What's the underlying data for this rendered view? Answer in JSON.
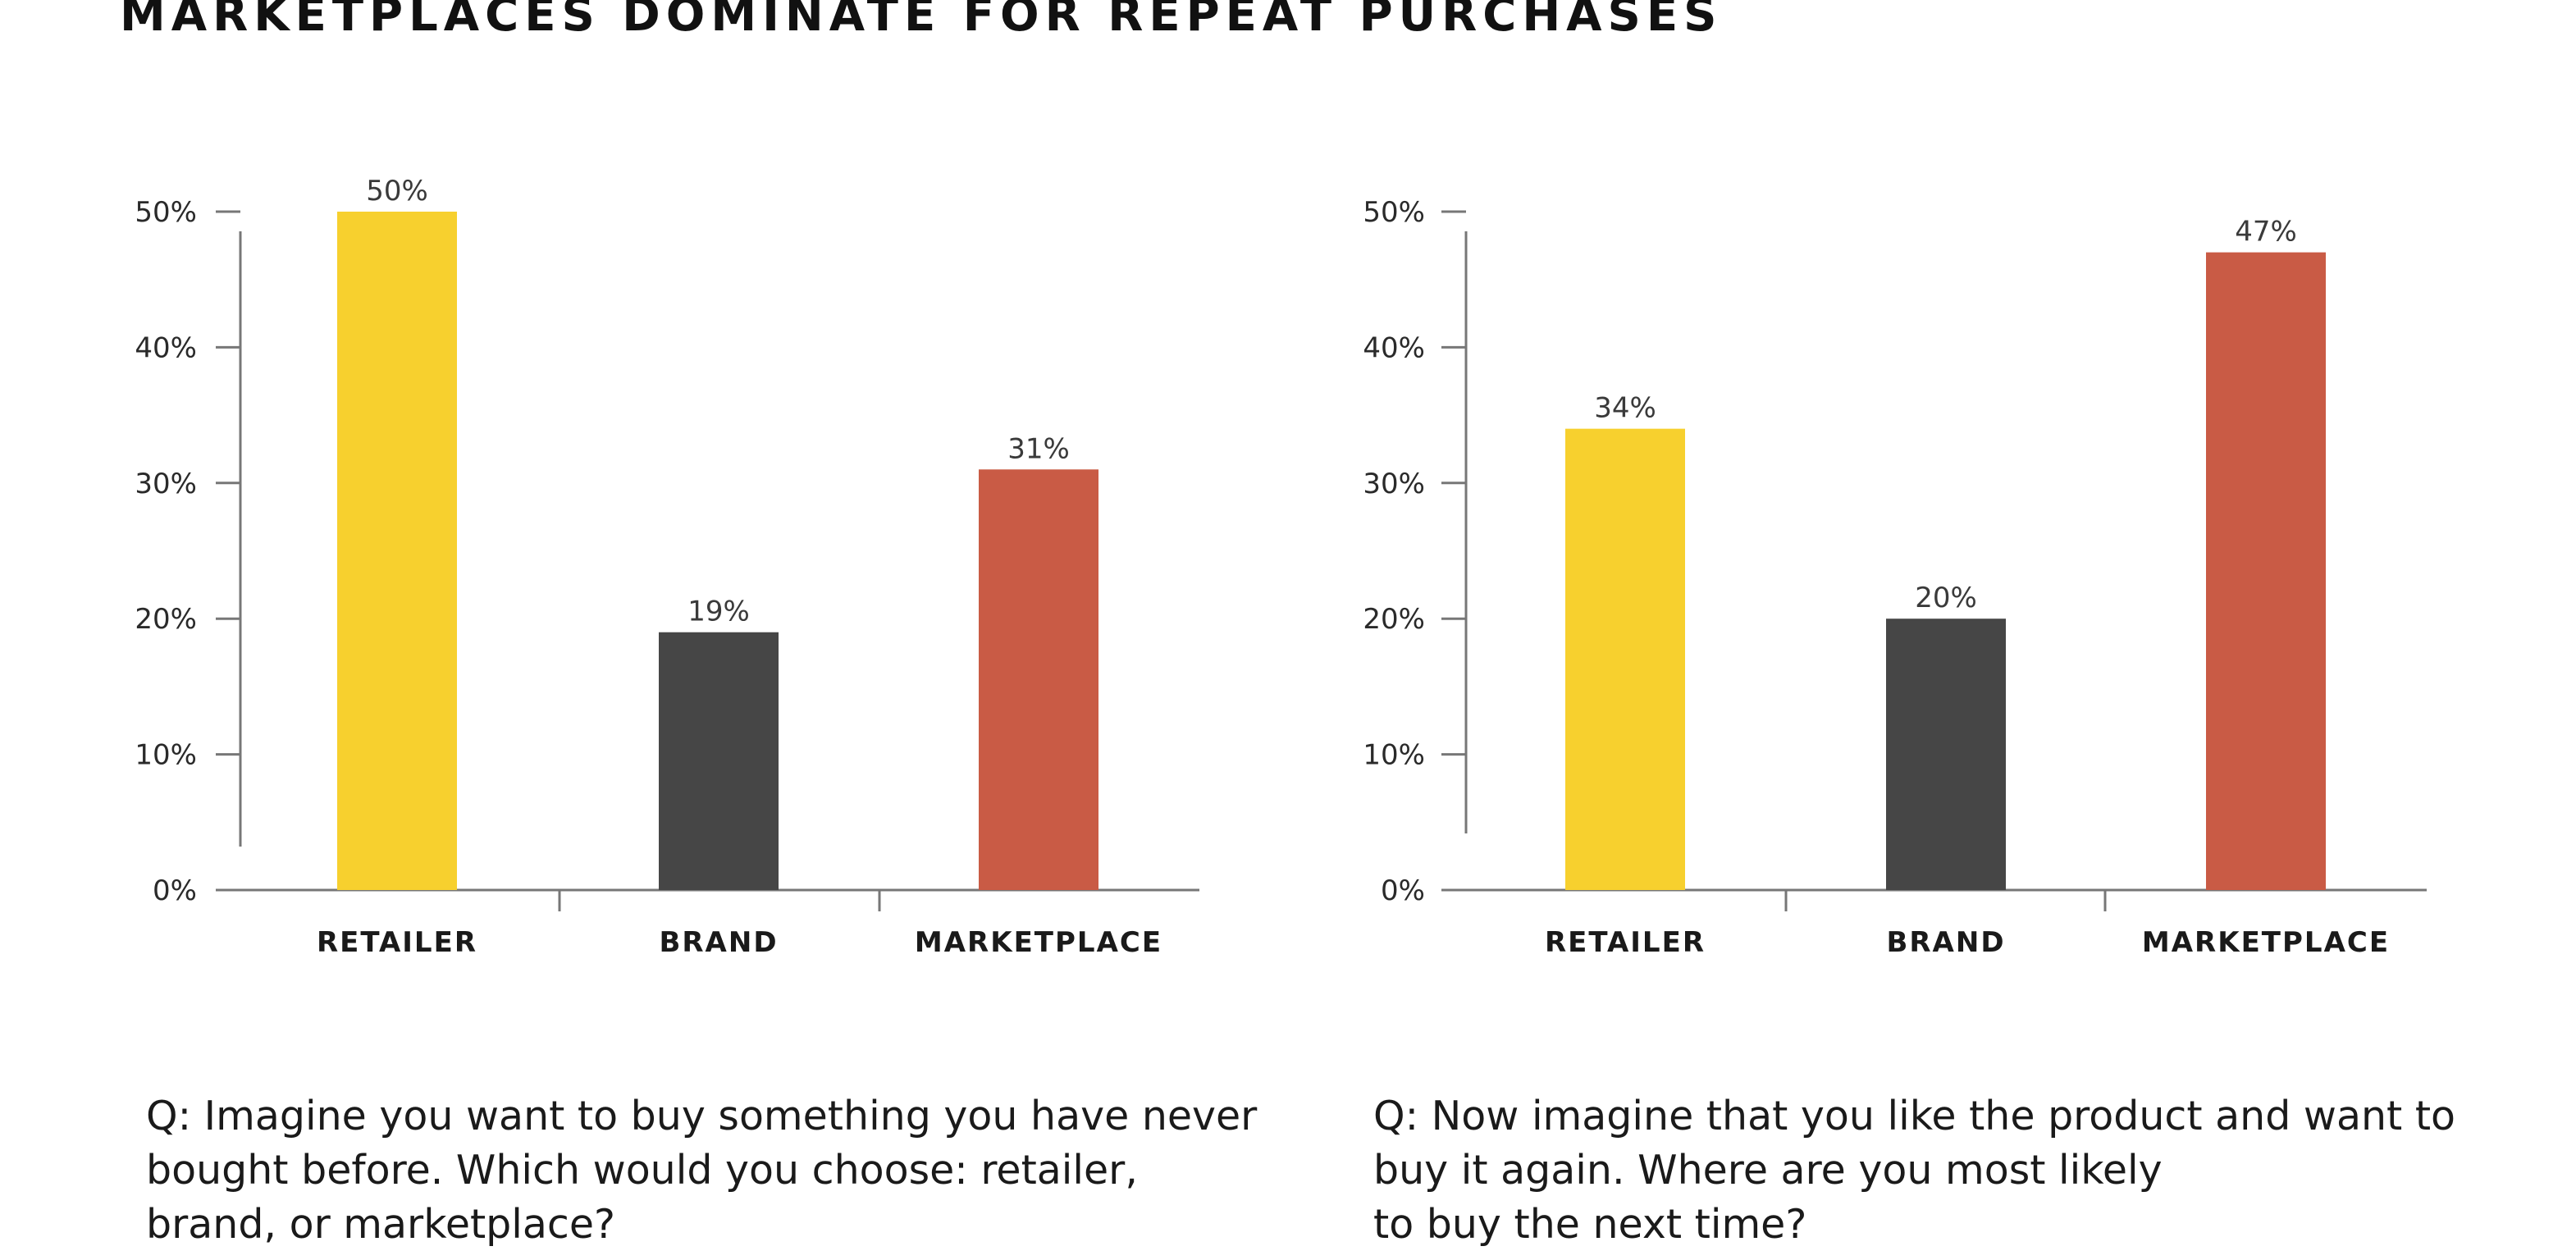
{
  "title": "MARKETPLACES DOMINATE FOR REPEAT PURCHASES",
  "colors": {
    "retailer": "#F7D02E",
    "brand": "#464646",
    "marketplace": "#C95B45",
    "axis": "#777777"
  },
  "chart_data": [
    {
      "type": "bar",
      "categories": [
        "RETAILER",
        "BRAND",
        "MARKETPLACE"
      ],
      "values": [
        50,
        19,
        31
      ],
      "value_labels": [
        "50%",
        "19%",
        "31%"
      ],
      "ylim": [
        0,
        50
      ],
      "yticks": [
        "0%",
        "10%",
        "20%",
        "30%",
        "40%",
        "50%"
      ],
      "grid": false,
      "question": "Q: Imagine you want to buy something you have never\nbought before. Which would you choose: retailer,\nbrand, or marketplace?"
    },
    {
      "type": "bar",
      "categories": [
        "RETAILER",
        "BRAND",
        "MARKETPLACE"
      ],
      "values": [
        34,
        20,
        47
      ],
      "value_labels": [
        "34%",
        "20%",
        "47%"
      ],
      "ylim": [
        0,
        50
      ],
      "yticks": [
        "0%",
        "10%",
        "20%",
        "30%",
        "40%",
        "50%"
      ],
      "grid": false,
      "question": "Q: Now imagine that you like the product and want to\nbuy it again. Where are you most likely\nto buy the next time?"
    }
  ]
}
